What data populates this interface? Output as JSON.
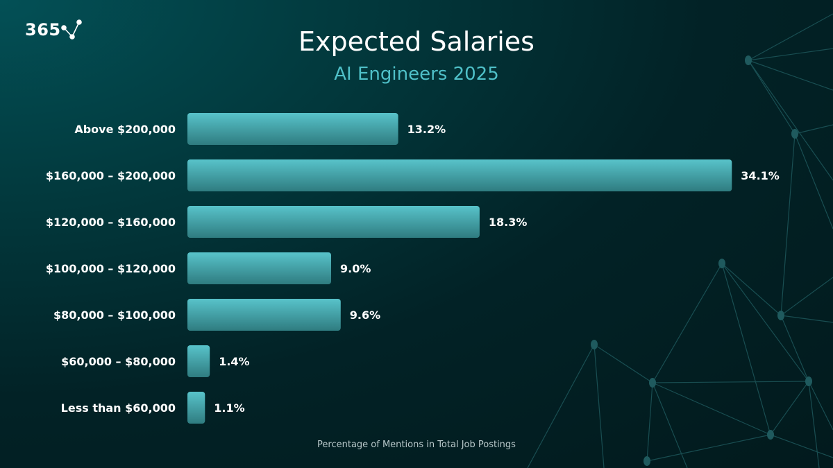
{
  "logo": {
    "text": "365"
  },
  "colors": {
    "bar_top": "#58c3ca",
    "bar_bottom": "#2f7c80",
    "subtitle": "#4fc0c8",
    "background": "#022226"
  },
  "chart_data": {
    "type": "bar",
    "orientation": "horizontal",
    "title": "Expected Salaries",
    "subtitle": "AI Engineers 2025",
    "xlabel": "Percentage of Mentions in Total Job Postings",
    "ylabel": "",
    "categories": [
      "Above $200,000",
      "$160,000 – $200,000",
      "$120,000 – $160,000",
      "$100,000 – $120,000",
      "$80,000 – $100,000",
      "$60,000 – $80,000",
      "Less than $60,000"
    ],
    "values": [
      13.2,
      34.1,
      18.3,
      9.0,
      9.6,
      1.4,
      1.1
    ],
    "value_labels": [
      "13.2%",
      "34.1%",
      "18.3%",
      "9.0%",
      "9.6%",
      "1.4%",
      "1.1%"
    ],
    "grid": false,
    "legend": "none"
  }
}
